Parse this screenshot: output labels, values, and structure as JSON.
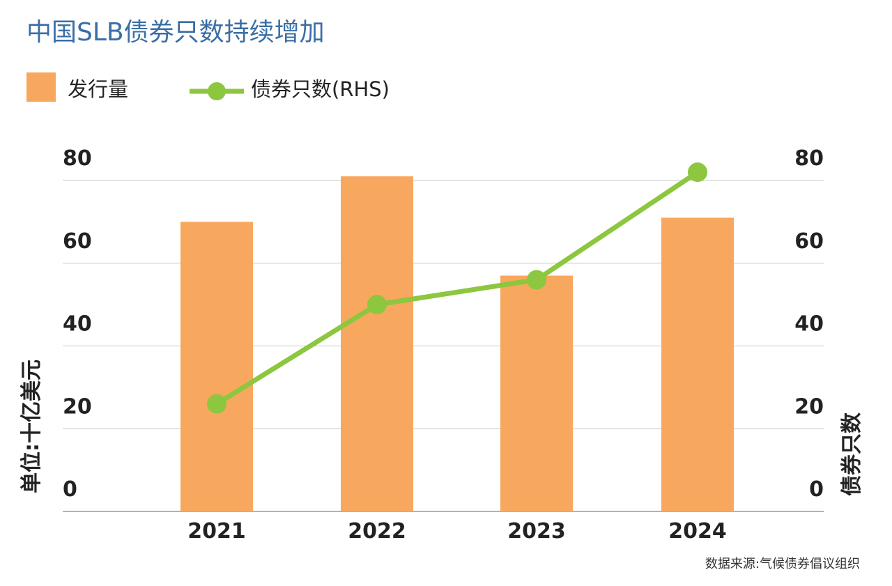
{
  "colors": {
    "bar": "#f7a85e",
    "line": "#8dc63f",
    "title": "#3a6ea5",
    "grid": "#c8c8c8",
    "text": "#222222"
  },
  "chart_data": {
    "type": "bar",
    "title": "中国SLB债券只数持续增加",
    "categories": [
      "2021",
      "2022",
      "2023",
      "2024"
    ],
    "ylabel_left": "单位:十亿美元",
    "ylabel_right": "债券只数",
    "ylim": [
      0,
      80
    ],
    "yticks": [
      0,
      20,
      40,
      60,
      80
    ],
    "y2lim": [
      0,
      80
    ],
    "y2ticks": [
      0,
      20,
      40,
      60,
      80
    ],
    "grid": true,
    "legend_position": "top-left",
    "series": [
      {
        "name": "发行量",
        "type": "bar",
        "axis": "left",
        "values": [
          70,
          81,
          57,
          71
        ]
      },
      {
        "name": "债券只数(RHS)",
        "type": "line",
        "axis": "right",
        "values": [
          26,
          50,
          56,
          82
        ]
      }
    ],
    "source": "数据来源:气候债券倡议组织"
  }
}
